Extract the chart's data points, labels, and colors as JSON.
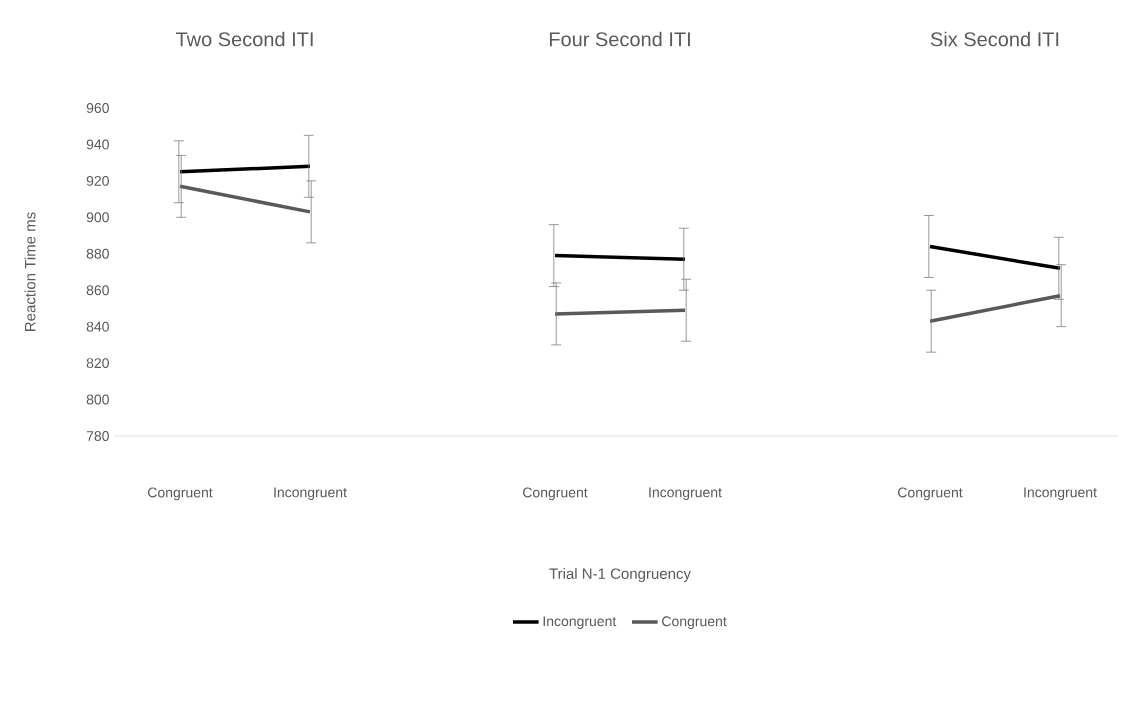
{
  "chart_data": [
    {
      "type": "line",
      "title": "Two Second ITI",
      "categories": [
        "Congruent",
        "Incongruent"
      ],
      "ylabel": "Reaction Time ms",
      "ylim": [
        780,
        960
      ],
      "yticks": [
        780,
        800,
        820,
        840,
        860,
        880,
        900,
        920,
        940,
        960
      ],
      "series": [
        {
          "color": "#000000",
          "values": [
            925,
            928
          ],
          "errors": [
            17,
            17
          ]
        },
        {
          "color": "#595959",
          "values": [
            917,
            903
          ],
          "errors": [
            17,
            17
          ]
        }
      ]
    },
    {
      "type": "line",
      "title": "Four Second ITI",
      "categories": [
        "Congruent",
        "Incongruent"
      ],
      "xlabel": "Trial N-1 Congruency",
      "ylim": [
        780,
        960
      ],
      "yticks": [
        780,
        800,
        820,
        840,
        860,
        880,
        900,
        920,
        940,
        960
      ],
      "tick_labels": "x",
      "legend": "bottom",
      "series": [
        {
          "name": "Incongruent",
          "color": "#000000",
          "values": [
            879,
            877
          ],
          "errors": [
            17,
            17
          ]
        },
        {
          "name": "Congruent",
          "color": "#595959",
          "values": [
            847,
            849
          ],
          "errors": [
            17,
            17
          ]
        }
      ]
    },
    {
      "type": "line",
      "title": "Six Second ITI",
      "categories": [
        "Congruent",
        "Incongruent"
      ],
      "ylim": [
        780,
        960
      ],
      "yticks": [
        780,
        800,
        820,
        840,
        860,
        880,
        900,
        920,
        940,
        960
      ],
      "tick_labels": "x",
      "series": [
        {
          "color": "#000000",
          "values": [
            884,
            872
          ],
          "errors": [
            17,
            17
          ]
        },
        {
          "color": "#595959",
          "values": [
            843,
            857
          ],
          "errors": [
            17,
            17
          ]
        }
      ]
    }
  ]
}
